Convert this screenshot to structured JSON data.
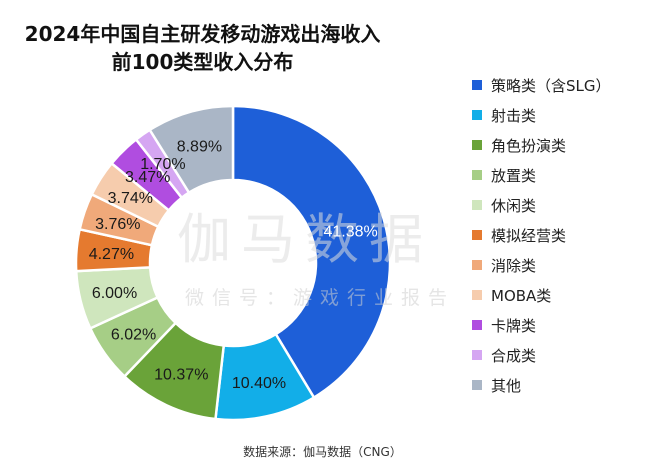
{
  "chart_data": {
    "type": "pie",
    "style": "donut",
    "title_lines": [
      "2024年中国自主研发移动游戏出海收入",
      "前100类型收入分布"
    ],
    "categories": [
      "策略类（含SLG）",
      "射击类",
      "角色扮演类",
      "放置类",
      "休闲类",
      "模拟经营类",
      "消除类",
      "MOBA类",
      "卡牌类",
      "合成类",
      "其他"
    ],
    "values": [
      41.38,
      10.4,
      10.37,
      6.02,
      6.0,
      4.27,
      3.76,
      3.74,
      3.47,
      1.7,
      8.89
    ],
    "value_labels": [
      "41.38%",
      "10.40%",
      "10.37%",
      "6.02%",
      "6.00%",
      "4.27%",
      "3.76%",
      "3.74%",
      "3.47%",
      "1.70%",
      "8.89%"
    ],
    "colors": [
      "#1e5fd8",
      "#12aee8",
      "#6aa339",
      "#a6ce86",
      "#cfe6bd",
      "#e57a2f",
      "#f0a97a",
      "#f6ccad",
      "#b04de0",
      "#d5a6f2",
      "#aab6c6"
    ],
    "legend_position": "right"
  },
  "watermark": {
    "main": "伽马数据",
    "sub": "微信号：游戏行业报告"
  },
  "source_text": "数据来源：伽马数据（CNG）"
}
